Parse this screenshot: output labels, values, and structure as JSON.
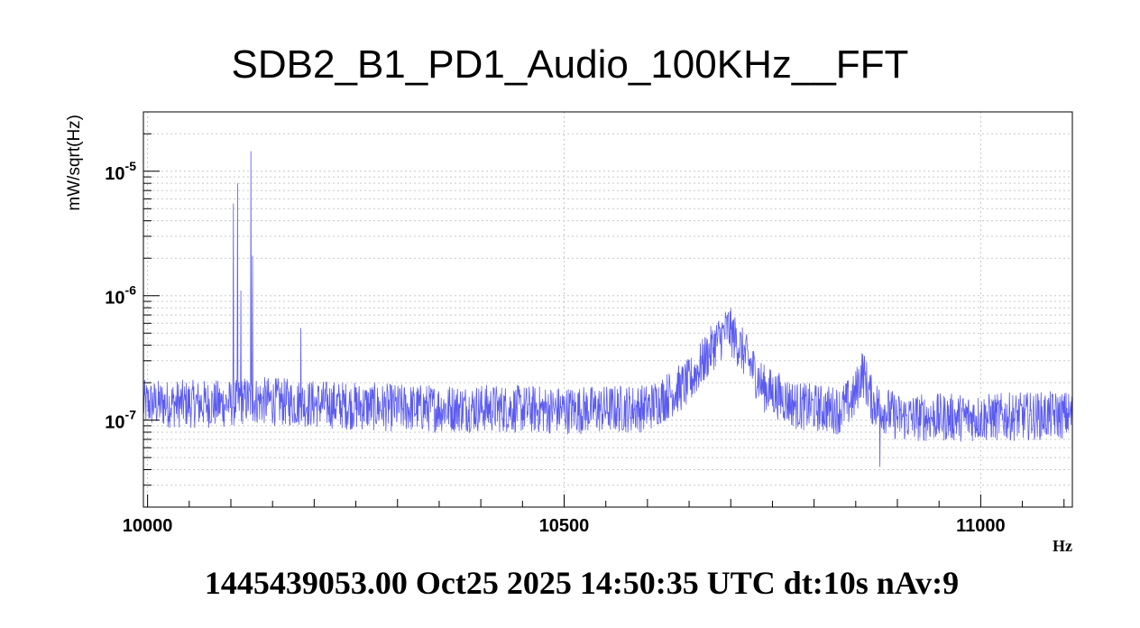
{
  "chart_data": {
    "type": "line",
    "title": "SDB2_B1_PD1_Audio_100KHz__FFT",
    "xlabel": "Hz",
    "ylabel": "mW/sqrt(Hz)",
    "xlim": [
      9995,
      11110
    ],
    "ylim": [
      2e-08,
      3e-05
    ],
    "yscale": "log",
    "grid": true,
    "x_ticks": [
      {
        "value": 10000,
        "label": "10000"
      },
      {
        "value": 10500,
        "label": "10500"
      },
      {
        "value": 11000,
        "label": "11000"
      }
    ],
    "y_ticks": [
      {
        "value": 1e-07,
        "base": "10",
        "exp": "-7"
      },
      {
        "value": 1e-06,
        "base": "10",
        "exp": "-6"
      },
      {
        "value": 1e-05,
        "base": "10",
        "exp": "-5"
      }
    ],
    "series": [
      {
        "color": "#5b5bf0",
        "baseline": [
          [
            9995,
            1.35e-07
          ],
          [
            10095,
            1.35e-07
          ],
          [
            10120,
            1.45e-07
          ],
          [
            10200,
            1.35e-07
          ],
          [
            10300,
            1.25e-07
          ],
          [
            10400,
            1.25e-07
          ],
          [
            10500,
            1.2e-07
          ],
          [
            10600,
            1.25e-07
          ],
          [
            10650,
            2e-07
          ],
          [
            10680,
            4e-07
          ],
          [
            10697,
            5.5e-07
          ],
          [
            10715,
            3.5e-07
          ],
          [
            10740,
            1.8e-07
          ],
          [
            10780,
            1.3e-07
          ],
          [
            10830,
            1.2e-07
          ],
          [
            10848,
            1.5e-07
          ],
          [
            10858,
            2.5e-07
          ],
          [
            10870,
            1.4e-07
          ],
          [
            10900,
            1.05e-07
          ],
          [
            11000,
            1.05e-07
          ],
          [
            11110,
            1.1e-07
          ]
        ],
        "peaks": [
          {
            "x": 10103,
            "y": 5.5e-06
          },
          {
            "x": 10108,
            "y": 8e-06
          },
          {
            "x": 10112,
            "y": 1.1e-06
          },
          {
            "x": 10124,
            "y": 1.45e-05
          },
          {
            "x": 10126,
            "y": 2.1e-06
          },
          {
            "x": 10184,
            "y": 5.5e-07
          },
          {
            "x": 10879,
            "y": 4.2e-08
          }
        ]
      }
    ]
  },
  "footer": "1445439053.00 Oct25 2025 14:50:35 UTC dt:10s nAv:9"
}
